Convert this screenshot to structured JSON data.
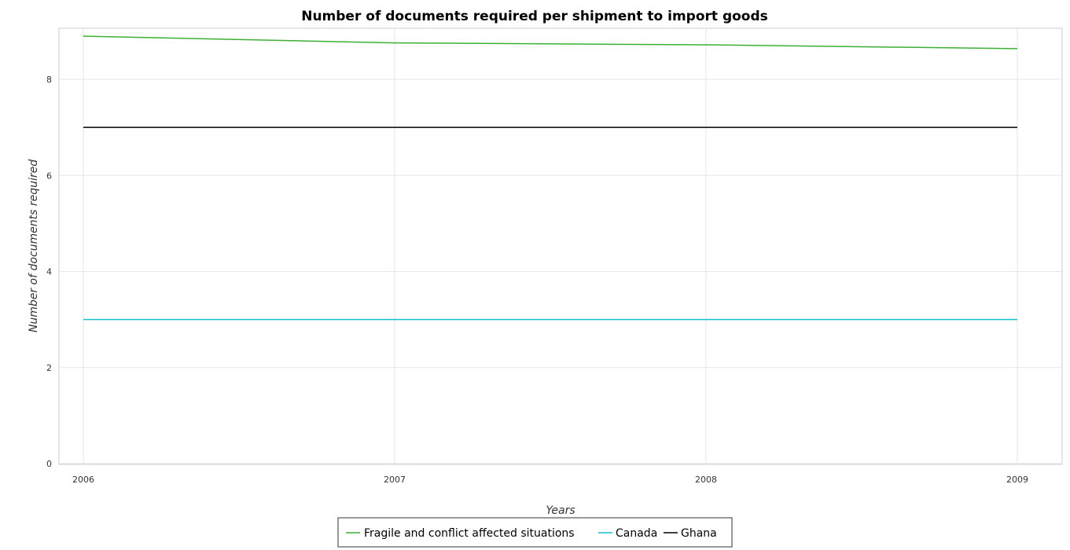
{
  "chart_data": {
    "type": "line",
    "title": "Number of documents required per shipment to import goods",
    "xlabel": "Years",
    "ylabel": "Number of documents required",
    "categories": [
      "2006",
      "2007",
      "2008",
      "2009"
    ],
    "ylim": [
      0,
      9.2
    ],
    "yticks": [
      "0",
      "2",
      "4",
      "6",
      "8"
    ],
    "grid": true,
    "legend_position": "bottom-center",
    "series": [
      {
        "name": "Fragile and conflict affected situations",
        "color": "#3cb034",
        "values": [
          8.9,
          8.76,
          8.72,
          8.64
        ]
      },
      {
        "name": "Canada",
        "color": "#17becf",
        "values": [
          3,
          3,
          3,
          3
        ]
      },
      {
        "name": "Ghana",
        "color": "#000000",
        "values": [
          7,
          7,
          7,
          7
        ]
      }
    ]
  }
}
